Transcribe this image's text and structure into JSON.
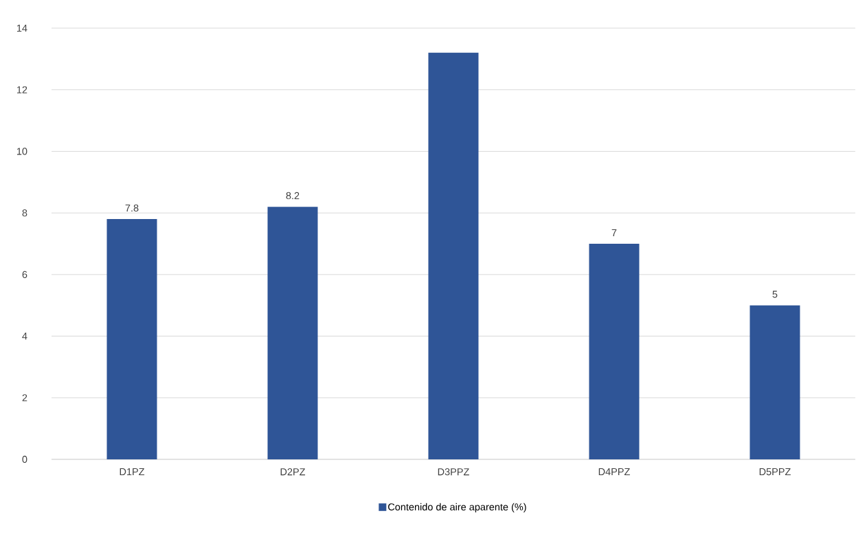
{
  "chart_data": {
    "type": "bar",
    "categories": [
      "D1PZ",
      "D2PZ",
      "D3PPZ",
      "D4PPZ",
      "D5PPZ"
    ],
    "series": [
      {
        "name": "Contenido de aire aparente (%)",
        "color": "#2f5597",
        "values": [
          7.8,
          8.2,
          13.2,
          7,
          5
        ],
        "value_labels": [
          "7.8",
          "8.2",
          null,
          "7",
          "5"
        ]
      }
    ],
    "ylim": [
      0,
      14
    ],
    "yticks": [
      0,
      2,
      4,
      6,
      8,
      10,
      12,
      14
    ],
    "grid": "y",
    "legend": "bottom"
  }
}
